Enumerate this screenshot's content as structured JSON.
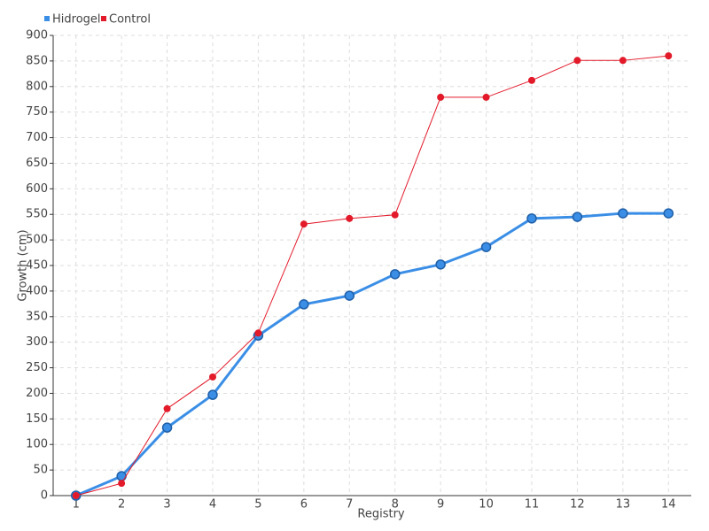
{
  "chart_data": {
    "type": "line",
    "x_label": "Registry",
    "y_label": "Growth (cm)",
    "categories": [
      "1",
      "2",
      "3",
      "4",
      "5",
      "6",
      "7",
      "8",
      "9",
      "10",
      "11",
      "12",
      "13",
      "14"
    ],
    "series": [
      {
        "name": "Hidrogel",
        "color": "#3a8ee6",
        "values": [
          0,
          38,
          133,
          197,
          313,
          374,
          391,
          433,
          452,
          486,
          542,
          545,
          552,
          552
        ]
      },
      {
        "name": "Control",
        "color": "#e31a2a",
        "values": [
          0,
          24,
          170,
          232,
          318,
          531,
          542,
          549,
          779,
          779,
          812,
          851,
          851,
          860
        ]
      }
    ],
    "ylim": [
      0,
      900
    ],
    "yticks": [
      0,
      50,
      100,
      150,
      200,
      250,
      300,
      350,
      400,
      450,
      500,
      550,
      600,
      650,
      700,
      750,
      800,
      850,
      900
    ],
    "grid": true,
    "legend": "top-left"
  }
}
